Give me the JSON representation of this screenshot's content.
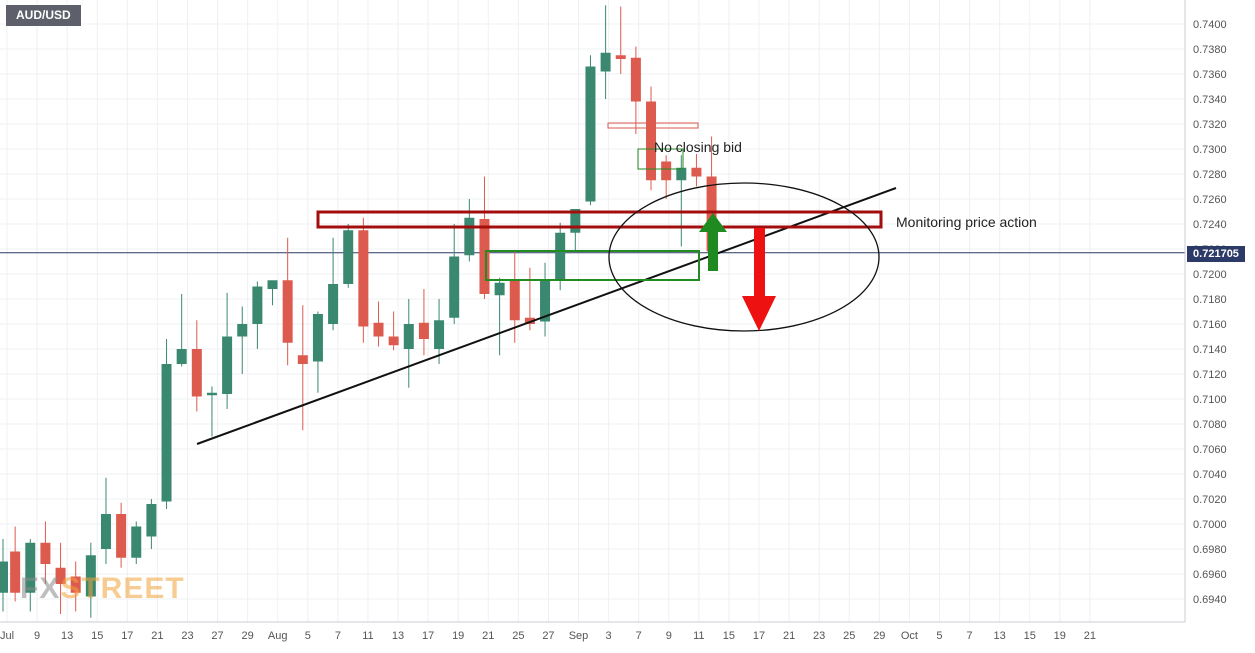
{
  "chart_data": {
    "type": "candlestick",
    "symbol": "AUD/USD",
    "current_price": "0.721705",
    "ylim": [
      0.6925,
      0.7415
    ],
    "y_ticks": [
      "0.7400",
      "0.7380",
      "0.7360",
      "0.7340",
      "0.7320",
      "0.7300",
      "0.7280",
      "0.7260",
      "0.7240",
      "0.7220",
      "0.7200",
      "0.7180",
      "0.7160",
      "0.7140",
      "0.7120",
      "0.7100",
      "0.7080",
      "0.7060",
      "0.7040",
      "0.7020",
      "0.7000",
      "0.6980",
      "0.6960",
      "0.6940"
    ],
    "x_ticks": [
      "Jul",
      "9",
      "13",
      "15",
      "17",
      "21",
      "23",
      "27",
      "29",
      "Aug",
      "5",
      "7",
      "11",
      "13",
      "17",
      "19",
      "21",
      "25",
      "27",
      "Sep",
      "3",
      "7",
      "9",
      "11",
      "15",
      "17",
      "21",
      "23",
      "25",
      "29",
      "Oct",
      "5",
      "7",
      "13",
      "15",
      "19",
      "21"
    ],
    "candles": [
      {
        "date": "Jul 6",
        "open": 0.6945,
        "high": 0.6988,
        "low": 0.693,
        "close": 0.697
      },
      {
        "date": "Jul 7",
        "open": 0.6978,
        "high": 0.6998,
        "low": 0.6938,
        "close": 0.6945
      },
      {
        "date": "Jul 8",
        "open": 0.6945,
        "high": 0.6988,
        "low": 0.693,
        "close": 0.6985
      },
      {
        "date": "Jul 9",
        "open": 0.6985,
        "high": 0.7002,
        "low": 0.6952,
        "close": 0.6968
      },
      {
        "date": "Jul 12",
        "open": 0.6965,
        "high": 0.6985,
        "low": 0.6928,
        "close": 0.6952
      },
      {
        "date": "Jul 13",
        "open": 0.6958,
        "high": 0.697,
        "low": 0.693,
        "close": 0.6945
      },
      {
        "date": "Jul 14",
        "open": 0.6942,
        "high": 0.6985,
        "low": 0.6925,
        "close": 0.6975
      },
      {
        "date": "Jul 15",
        "open": 0.698,
        "high": 0.7037,
        "low": 0.6968,
        "close": 0.7008
      },
      {
        "date": "Jul 16",
        "open": 0.7008,
        "high": 0.7017,
        "low": 0.6965,
        "close": 0.6973
      },
      {
        "date": "Jul 19",
        "open": 0.6973,
        "high": 0.7002,
        "low": 0.6968,
        "close": 0.6998
      },
      {
        "date": "Jul 20",
        "open": 0.699,
        "high": 0.702,
        "low": 0.698,
        "close": 0.7016
      },
      {
        "date": "Jul 21",
        "open": 0.7018,
        "high": 0.7148,
        "low": 0.7012,
        "close": 0.7128
      },
      {
        "date": "Jul 22",
        "open": 0.7128,
        "high": 0.7184,
        "low": 0.7126,
        "close": 0.714
      },
      {
        "date": "Jul 23",
        "open": 0.714,
        "high": 0.7163,
        "low": 0.709,
        "close": 0.7102
      },
      {
        "date": "Jul 26",
        "open": 0.7103,
        "high": 0.711,
        "low": 0.707,
        "close": 0.7105
      },
      {
        "date": "Jul 27",
        "open": 0.7104,
        "high": 0.7185,
        "low": 0.7092,
        "close": 0.715
      },
      {
        "date": "Jul 28",
        "open": 0.715,
        "high": 0.7174,
        "low": 0.712,
        "close": 0.716
      },
      {
        "date": "Jul 29",
        "open": 0.716,
        "high": 0.7194,
        "low": 0.714,
        "close": 0.719
      },
      {
        "date": "Jul 30",
        "open": 0.7188,
        "high": 0.7193,
        "low": 0.7175,
        "close": 0.7195
      },
      {
        "date": "Aug 2",
        "open": 0.7195,
        "high": 0.7229,
        "low": 0.7127,
        "close": 0.7145
      },
      {
        "date": "Aug 3",
        "open": 0.7135,
        "high": 0.7175,
        "low": 0.7075,
        "close": 0.7128
      },
      {
        "date": "Aug 4",
        "open": 0.713,
        "high": 0.717,
        "low": 0.7105,
        "close": 0.7168
      },
      {
        "date": "Aug 5",
        "open": 0.716,
        "high": 0.7229,
        "low": 0.7155,
        "close": 0.7192
      },
      {
        "date": "Aug 6",
        "open": 0.7192,
        "high": 0.724,
        "low": 0.7189,
        "close": 0.7235
      },
      {
        "date": "Aug 9",
        "open": 0.7235,
        "high": 0.7245,
        "low": 0.7145,
        "close": 0.7158
      },
      {
        "date": "Aug 10",
        "open": 0.7161,
        "high": 0.7178,
        "low": 0.7142,
        "close": 0.715
      },
      {
        "date": "Aug 11",
        "open": 0.715,
        "high": 0.717,
        "low": 0.7139,
        "close": 0.7143
      },
      {
        "date": "Aug 12",
        "open": 0.714,
        "high": 0.718,
        "low": 0.7109,
        "close": 0.716
      },
      {
        "date": "Aug 13",
        "open": 0.7161,
        "high": 0.7188,
        "low": 0.7135,
        "close": 0.7148
      },
      {
        "date": "Aug 16",
        "open": 0.714,
        "high": 0.718,
        "low": 0.7128,
        "close": 0.7163
      },
      {
        "date": "Aug 17",
        "open": 0.7165,
        "high": 0.724,
        "low": 0.716,
        "close": 0.7214
      },
      {
        "date": "Aug 18",
        "open": 0.7215,
        "high": 0.726,
        "low": 0.721,
        "close": 0.7245
      },
      {
        "date": "Aug 19",
        "open": 0.7244,
        "high": 0.7278,
        "low": 0.718,
        "close": 0.7184
      },
      {
        "date": "Aug 20",
        "open": 0.7183,
        "high": 0.7197,
        "low": 0.7135,
        "close": 0.7193
      },
      {
        "date": "Aug 23",
        "open": 0.7195,
        "high": 0.7219,
        "low": 0.7145,
        "close": 0.7163
      },
      {
        "date": "Aug 24",
        "open": 0.7165,
        "high": 0.7205,
        "low": 0.7155,
        "close": 0.716
      },
      {
        "date": "Aug 25",
        "open": 0.7162,
        "high": 0.7209,
        "low": 0.715,
        "close": 0.7195
      },
      {
        "date": "Aug 26",
        "open": 0.7195,
        "high": 0.7241,
        "low": 0.7187,
        "close": 0.7233
      },
      {
        "date": "Aug 27",
        "open": 0.7233,
        "high": 0.7252,
        "low": 0.7218,
        "close": 0.7252
      },
      {
        "date": "Aug 30",
        "open": 0.7258,
        "high": 0.7375,
        "low": 0.7255,
        "close": 0.7366
      },
      {
        "date": "Aug 31",
        "open": 0.7362,
        "high": 0.7415,
        "low": 0.734,
        "close": 0.7377
      },
      {
        "date": "Sep 1",
        "open": 0.7375,
        "high": 0.7414,
        "low": 0.736,
        "close": 0.7372
      },
      {
        "date": "Sep 2",
        "open": 0.7373,
        "high": 0.7382,
        "low": 0.7312,
        "close": 0.7338
      },
      {
        "date": "Sep 3",
        "open": 0.7338,
        "high": 0.735,
        "low": 0.7267,
        "close": 0.7275
      },
      {
        "date": "Sep 6",
        "open": 0.729,
        "high": 0.7295,
        "low": 0.726,
        "close": 0.7275
      },
      {
        "date": "Sep 7",
        "open": 0.7275,
        "high": 0.7295,
        "low": 0.7222,
        "close": 0.7285
      },
      {
        "date": "Sep 8",
        "open": 0.7285,
        "high": 0.7296,
        "low": 0.727,
        "close": 0.7278
      },
      {
        "date": "Sep 9",
        "open": 0.7278,
        "high": 0.731,
        "low": 0.721,
        "close": 0.7218
      }
    ],
    "up_color": "#3b8871",
    "down_color": "#dd5a4e",
    "support_color": "#228b22",
    "resistance_color": "#a30d0d"
  },
  "annotations": {
    "no_closing_bid": "No closing bid",
    "monitoring": "Monitoring price action"
  },
  "watermark": {
    "part1": "FX",
    "part2": "STREET"
  }
}
